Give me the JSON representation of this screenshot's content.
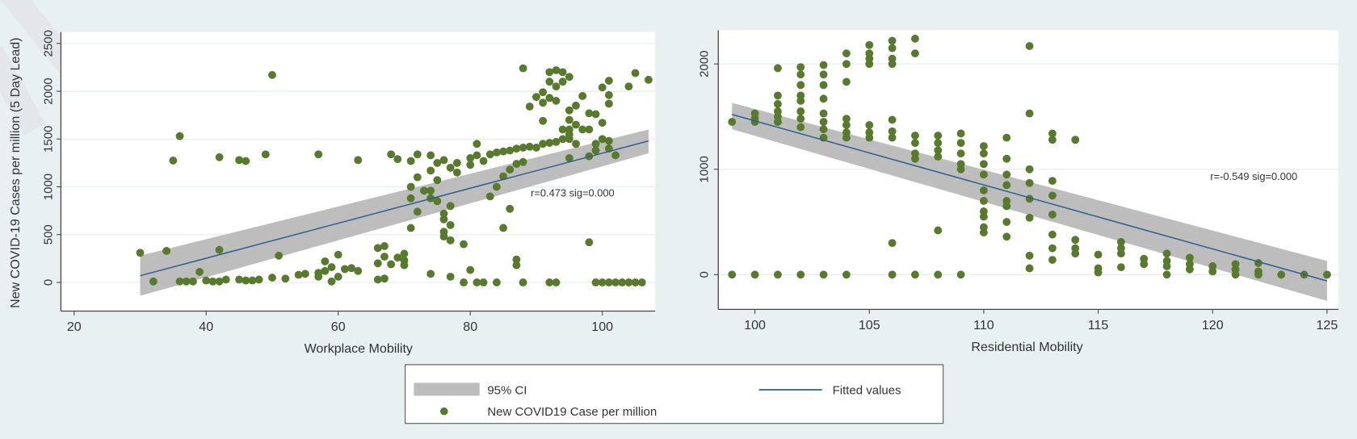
{
  "colors": {
    "background": "#e9f0f2",
    "plot_bg": "#ffffff",
    "grid": "#e6eff1",
    "marker": "#587a2c",
    "fit_line": "#2f5f8f",
    "ci_band": "#bdbdbd",
    "axis": "#444444"
  },
  "legend": {
    "ci_label": "95% CI",
    "fit_label": "Fitted values",
    "points_label": "New COVID19 Case per million",
    "placement": "bottom-center"
  },
  "chart_data": [
    {
      "type": "scatter",
      "xlabel": "Workplace Mobility",
      "ylabel": "New COVID-19 Cases per million (5 Day Lead)",
      "xlim": [
        18,
        108
      ],
      "ylim": [
        -300,
        2620
      ],
      "xticks": [
        20,
        40,
        60,
        80,
        100
      ],
      "yticks": [
        0,
        500,
        1000,
        1500,
        2000,
        2500
      ],
      "grid": true,
      "annotation": {
        "text": "r=0.473 sig=0.000",
        "x": 95.5,
        "y": 900
      },
      "fit": {
        "x": [
          30,
          107
        ],
        "y": [
          70,
          1480
        ],
        "ci_low": [
          -140,
          1350
        ],
        "ci_high": [
          280,
          1600
        ]
      },
      "points": [
        [
          30,
          310
        ],
        [
          32,
          10
        ],
        [
          34,
          330
        ],
        [
          35,
          1275
        ],
        [
          36,
          1530
        ],
        [
          36,
          10
        ],
        [
          37,
          10
        ],
        [
          38,
          10
        ],
        [
          39,
          110
        ],
        [
          40,
          20
        ],
        [
          41,
          10
        ],
        [
          42,
          340
        ],
        [
          42,
          1310
        ],
        [
          42,
          10
        ],
        [
          43,
          30
        ],
        [
          45,
          30
        ],
        [
          45,
          1280
        ],
        [
          46,
          1270
        ],
        [
          46,
          20
        ],
        [
          47,
          20
        ],
        [
          48,
          30
        ],
        [
          49,
          1340
        ],
        [
          50,
          2170
        ],
        [
          50,
          50
        ],
        [
          51,
          280
        ],
        [
          52,
          40
        ],
        [
          54,
          80
        ],
        [
          55,
          90
        ],
        [
          57,
          1340
        ],
        [
          57,
          60
        ],
        [
          57,
          100
        ],
        [
          58,
          220
        ],
        [
          58,
          120
        ],
        [
          59,
          10
        ],
        [
          59,
          160
        ],
        [
          60,
          290
        ],
        [
          60,
          60
        ],
        [
          61,
          140
        ],
        [
          62,
          150
        ],
        [
          63,
          1280
        ],
        [
          63,
          120
        ],
        [
          66,
          360
        ],
        [
          66,
          200
        ],
        [
          66,
          30
        ],
        [
          67,
          380
        ],
        [
          67,
          270
        ],
        [
          67,
          40
        ],
        [
          68,
          1340
        ],
        [
          68,
          190
        ],
        [
          69,
          1290
        ],
        [
          69,
          260
        ],
        [
          70,
          300
        ],
        [
          70,
          180
        ],
        [
          70,
          230
        ],
        [
          71,
          1270
        ],
        [
          71,
          1000
        ],
        [
          71,
          880
        ],
        [
          71,
          570
        ],
        [
          72,
          1100
        ],
        [
          72,
          740
        ],
        [
          72,
          1340
        ],
        [
          73,
          960
        ],
        [
          74,
          1330
        ],
        [
          74,
          1170
        ],
        [
          74,
          960
        ],
        [
          74,
          880
        ],
        [
          74,
          90
        ],
        [
          75,
          1250
        ],
        [
          75,
          1070
        ],
        [
          75,
          850
        ],
        [
          76,
          1280
        ],
        [
          76,
          720
        ],
        [
          76,
          660
        ],
        [
          76,
          530
        ],
        [
          76,
          480
        ],
        [
          77,
          1200
        ],
        [
          77,
          800
        ],
        [
          77,
          600
        ],
        [
          77,
          440
        ],
        [
          77,
          60
        ],
        [
          78,
          1250
        ],
        [
          78,
          1150
        ],
        [
          79,
          400
        ],
        [
          79,
          0
        ],
        [
          80,
          1300
        ],
        [
          80,
          1230
        ],
        [
          80,
          130
        ],
        [
          81,
          1450
        ],
        [
          81,
          1330
        ],
        [
          81,
          0
        ],
        [
          82,
          1270
        ],
        [
          82,
          0
        ],
        [
          83,
          1340
        ],
        [
          83,
          900
        ],
        [
          84,
          1360
        ],
        [
          84,
          1000
        ],
        [
          84,
          0
        ],
        [
          85,
          1370
        ],
        [
          85,
          1110
        ],
        [
          85,
          570
        ],
        [
          86,
          1380
        ],
        [
          86,
          1180
        ],
        [
          86,
          770
        ],
        [
          87,
          1400
        ],
        [
          87,
          1240
        ],
        [
          87,
          240
        ],
        [
          87,
          180
        ],
        [
          88,
          2240
        ],
        [
          88,
          1410
        ],
        [
          88,
          1260
        ],
        [
          88,
          0
        ],
        [
          89,
          1840
        ],
        [
          89,
          1420
        ],
        [
          90,
          1940
        ],
        [
          90,
          1410
        ],
        [
          91,
          1990
        ],
        [
          91,
          1880
        ],
        [
          91,
          1690
        ],
        [
          91,
          1450
        ],
        [
          92,
          2200
        ],
        [
          92,
          2100
        ],
        [
          92,
          1930
        ],
        [
          92,
          1460
        ],
        [
          92,
          0
        ],
        [
          93,
          2220
        ],
        [
          93,
          2050
        ],
        [
          93,
          1900
        ],
        [
          93,
          1470
        ],
        [
          93,
          0
        ],
        [
          94,
          2200
        ],
        [
          94,
          2100
        ],
        [
          94,
          1600
        ],
        [
          94,
          1500
        ],
        [
          95,
          2150
        ],
        [
          95,
          1800
        ],
        [
          95,
          1700
        ],
        [
          95,
          1600
        ],
        [
          95,
          1550
        ],
        [
          95,
          1500
        ],
        [
          95,
          1300
        ],
        [
          96,
          1850
        ],
        [
          96,
          1650
        ],
        [
          96,
          1450
        ],
        [
          97,
          1950
        ],
        [
          97,
          1600
        ],
        [
          98,
          1770
        ],
        [
          98,
          1600
        ],
        [
          98,
          1320
        ],
        [
          98,
          420
        ],
        [
          99,
          1760
        ],
        [
          99,
          1450
        ],
        [
          99,
          1380
        ],
        [
          99,
          0
        ],
        [
          100,
          2040
        ],
        [
          100,
          1670
        ],
        [
          100,
          1500
        ],
        [
          100,
          0
        ],
        [
          101,
          2110
        ],
        [
          101,
          1960
        ],
        [
          101,
          1870
        ],
        [
          101,
          1480
        ],
        [
          101,
          1400
        ],
        [
          101,
          0
        ],
        [
          102,
          1330
        ],
        [
          102,
          0
        ],
        [
          103,
          0
        ],
        [
          104,
          2050
        ],
        [
          104,
          0
        ],
        [
          105,
          2190
        ],
        [
          105,
          0
        ],
        [
          106,
          0
        ],
        [
          107,
          2120
        ]
      ]
    },
    {
      "type": "scatter",
      "xlabel": "Residential Mobility",
      "ylabel": "",
      "xlim": [
        98.4,
        125.5
      ],
      "ylim": [
        -330,
        2320
      ],
      "xticks": [
        100,
        105,
        110,
        115,
        120,
        125
      ],
      "yticks": [
        0,
        1000,
        2000
      ],
      "grid": true,
      "annotation": {
        "text": "r=-0.549 sig=0.000",
        "x": 121.8,
        "y": 900
      },
      "fit": {
        "x": [
          99,
          125
        ],
        "y": [
          1520,
          -60
        ],
        "ci_low": [
          1380,
          -250
        ],
        "ci_high": [
          1630,
          130
        ]
      },
      "points": [
        [
          99,
          1450
        ],
        [
          99,
          0
        ],
        [
          100,
          1530
        ],
        [
          100,
          1480
        ],
        [
          100,
          1450
        ],
        [
          100,
          0
        ],
        [
          101,
          1960
        ],
        [
          101,
          1700
        ],
        [
          101,
          1620
        ],
        [
          101,
          1550
        ],
        [
          101,
          1500
        ],
        [
          101,
          1450
        ],
        [
          101,
          0
        ],
        [
          102,
          1970
        ],
        [
          102,
          1900
        ],
        [
          102,
          1800
        ],
        [
          102,
          1700
        ],
        [
          102,
          1650
        ],
        [
          102,
          1550
        ],
        [
          102,
          1480
        ],
        [
          102,
          1400
        ],
        [
          102,
          0
        ],
        [
          103,
          1990
        ],
        [
          103,
          1900
        ],
        [
          103,
          1800
        ],
        [
          103,
          1670
        ],
        [
          103,
          1530
        ],
        [
          103,
          1450
        ],
        [
          103,
          1380
        ],
        [
          103,
          1300
        ],
        [
          103,
          0
        ],
        [
          104,
          2100
        ],
        [
          104,
          2000
        ],
        [
          104,
          1830
        ],
        [
          104,
          1480
        ],
        [
          104,
          1420
        ],
        [
          104,
          1350
        ],
        [
          104,
          1300
        ],
        [
          104,
          0
        ],
        [
          105,
          2180
        ],
        [
          105,
          2100
        ],
        [
          105,
          2050
        ],
        [
          105,
          2000
        ],
        [
          105,
          1420
        ],
        [
          105,
          1350
        ],
        [
          105,
          1300
        ],
        [
          106,
          2220
        ],
        [
          106,
          2150
        ],
        [
          106,
          2050
        ],
        [
          106,
          2000
        ],
        [
          106,
          1470
        ],
        [
          106,
          1360
        ],
        [
          106,
          1300
        ],
        [
          106,
          300
        ],
        [
          106,
          0
        ],
        [
          107,
          2240
        ],
        [
          107,
          2100
        ],
        [
          107,
          1320
        ],
        [
          107,
          1250
        ],
        [
          107,
          1150
        ],
        [
          107,
          1100
        ],
        [
          107,
          0
        ],
        [
          108,
          1320
        ],
        [
          108,
          1250
        ],
        [
          108,
          1180
        ],
        [
          108,
          1120
        ],
        [
          108,
          420
        ],
        [
          108,
          0
        ],
        [
          109,
          1340
        ],
        [
          109,
          1250
        ],
        [
          109,
          1150
        ],
        [
          109,
          1050
        ],
        [
          109,
          1000
        ],
        [
          109,
          0
        ],
        [
          110,
          1220
        ],
        [
          110,
          1150
        ],
        [
          110,
          1050
        ],
        [
          110,
          950
        ],
        [
          110,
          800
        ],
        [
          110,
          700
        ],
        [
          110,
          600
        ],
        [
          110,
          550
        ],
        [
          110,
          450
        ],
        [
          110,
          400
        ],
        [
          111,
          1300
        ],
        [
          111,
          1100
        ],
        [
          111,
          950
        ],
        [
          111,
          850
        ],
        [
          111,
          700
        ],
        [
          111,
          650
        ],
        [
          111,
          500
        ],
        [
          111,
          360
        ],
        [
          112,
          2170
        ],
        [
          112,
          1530
        ],
        [
          112,
          1000
        ],
        [
          112,
          870
        ],
        [
          112,
          720
        ],
        [
          112,
          540
        ],
        [
          112,
          180
        ],
        [
          112,
          60
        ],
        [
          113,
          1340
        ],
        [
          113,
          1280
        ],
        [
          113,
          890
        ],
        [
          113,
          750
        ],
        [
          113,
          570
        ],
        [
          113,
          380
        ],
        [
          113,
          250
        ],
        [
          113,
          140
        ],
        [
          114,
          1280
        ],
        [
          114,
          330
        ],
        [
          114,
          250
        ],
        [
          114,
          200
        ],
        [
          115,
          190
        ],
        [
          115,
          60
        ],
        [
          115,
          20
        ],
        [
          116,
          310
        ],
        [
          116,
          250
        ],
        [
          116,
          200
        ],
        [
          116,
          70
        ],
        [
          117,
          150
        ],
        [
          117,
          100
        ],
        [
          118,
          200
        ],
        [
          118,
          130
        ],
        [
          118,
          80
        ],
        [
          118,
          0
        ],
        [
          119,
          160
        ],
        [
          119,
          100
        ],
        [
          119,
          50
        ],
        [
          120,
          80
        ],
        [
          120,
          30
        ],
        [
          121,
          100
        ],
        [
          121,
          50
        ],
        [
          121,
          0
        ],
        [
          122,
          110
        ],
        [
          122,
          30
        ],
        [
          122,
          0
        ],
        [
          123,
          0
        ],
        [
          124,
          0
        ],
        [
          125,
          0
        ]
      ]
    }
  ]
}
